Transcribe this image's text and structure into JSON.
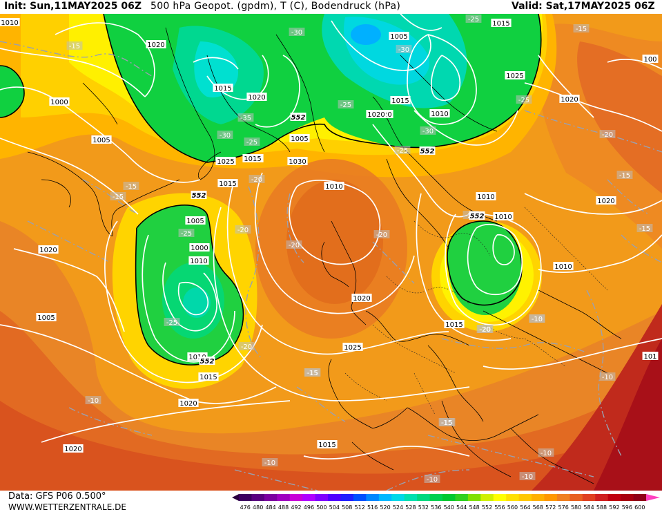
{
  "header": {
    "init": "Init: Sun,11MAY2025 06Z",
    "title": "500 hPa Geopot. (gpdm), T (C), Bodendruck (hPa)",
    "valid": "Valid: Sat,17MAY2025 06Z"
  },
  "footer": {
    "data_source": "Data: GFS P06 0.500°",
    "website": "WWW.WETTERZENTRALE.DE"
  },
  "scale": {
    "labels": [
      "476",
      "480",
      "484",
      "488",
      "492",
      "496",
      "500",
      "504",
      "508",
      "512",
      "516",
      "520",
      "524",
      "528",
      "532",
      "536",
      "540",
      "544",
      "548",
      "552",
      "556",
      "560",
      "564",
      "568",
      "572",
      "576",
      "580",
      "584",
      "588",
      "592",
      "596",
      "600"
    ],
    "colors": [
      "#3c0060",
      "#5a0080",
      "#7c00a0",
      "#a000c0",
      "#c800d8",
      "#b000ff",
      "#8000ff",
      "#5000ff",
      "#2020ff",
      "#0050ff",
      "#0088ff",
      "#00b8ff",
      "#00d8e8",
      "#00e0b0",
      "#00d880",
      "#00d050",
      "#00c830",
      "#30d020",
      "#80e000",
      "#d0f000",
      "#ffff00",
      "#ffe000",
      "#ffc800",
      "#ffb000",
      "#ff9800",
      "#f08020",
      "#e86020",
      "#e04020",
      "#d02020",
      "#c00010",
      "#a80010",
      "#900018"
    ]
  },
  "isobars": [
    {
      "text": "1010",
      "id": "p1"
    },
    {
      "text": "1005",
      "id": "p2"
    },
    {
      "text": "1015",
      "id": "p3"
    },
    {
      "text": "1020",
      "id": "p4"
    },
    {
      "text": "1000",
      "id": "p5"
    },
    {
      "text": "1005",
      "id": "p6"
    },
    {
      "text": "1020",
      "id": "p7"
    },
    {
      "text": "1015",
      "id": "p8"
    },
    {
      "text": "1020",
      "id": "p9"
    },
    {
      "text": "1015",
      "id": "p10"
    },
    {
      "text": "1025",
      "id": "p11"
    },
    {
      "text": "1020",
      "id": "p12"
    },
    {
      "text": "1015",
      "id": "p13"
    },
    {
      "text": "1025",
      "id": "p14"
    },
    {
      "text": "1030",
      "id": "p15"
    },
    {
      "text": "1010",
      "id": "p16"
    },
    {
      "text": "1005",
      "id": "p17"
    },
    {
      "text": "1000",
      "id": "p18"
    },
    {
      "text": "1010",
      "id": "p19"
    },
    {
      "text": "1020",
      "id": "p20"
    },
    {
      "text": "1005",
      "id": "p21"
    },
    {
      "text": "1010",
      "id": "p22"
    },
    {
      "text": "1015",
      "id": "p23"
    },
    {
      "text": "1020",
      "id": "p24"
    },
    {
      "text": "1020",
      "id": "p25"
    },
    {
      "text": "1025",
      "id": "p26"
    },
    {
      "text": "1020",
      "id": "p27"
    },
    {
      "text": "1015",
      "id": "p28"
    },
    {
      "text": "1015",
      "id": "p29"
    },
    {
      "text": "1010",
      "id": "p30"
    },
    {
      "text": "1010",
      "id": "p31"
    },
    {
      "text": "1020",
      "id": "p32"
    },
    {
      "text": "1015",
      "id": "p33"
    },
    {
      "text": "1010",
      "id": "p34"
    },
    {
      "text": "1020",
      "id": "p35"
    },
    {
      "text": "100",
      "id": "p36"
    },
    {
      "text": "101",
      "id": "p37"
    },
    {
      "text": "1005",
      "id": "p38"
    },
    {
      "text": "1010",
      "id": "p39"
    },
    {
      "text": "1015",
      "id": "p40"
    }
  ],
  "temps": [
    {
      "text": "-15"
    },
    {
      "text": "-30"
    },
    {
      "text": "-25"
    },
    {
      "text": "-30"
    },
    {
      "text": "-15"
    },
    {
      "text": "-35"
    },
    {
      "text": "-30"
    },
    {
      "text": "-25"
    },
    {
      "text": "-25"
    },
    {
      "text": "-25"
    },
    {
      "text": "-30"
    },
    {
      "text": "-25"
    },
    {
      "text": "-15"
    },
    {
      "text": "-15"
    },
    {
      "text": "-20"
    },
    {
      "text": "-20"
    },
    {
      "text": "-25"
    },
    {
      "text": "-20"
    },
    {
      "text": "-20"
    },
    {
      "text": "-25"
    },
    {
      "text": "-20"
    },
    {
      "text": "-25"
    },
    {
      "text": "-20"
    },
    {
      "text": "-15"
    },
    {
      "text": "-20"
    },
    {
      "text": "-15"
    },
    {
      "text": "-15"
    },
    {
      "text": "-10"
    },
    {
      "text": "-15"
    },
    {
      "text": "-10"
    },
    {
      "text": "-10"
    },
    {
      "text": "-10"
    },
    {
      "text": "-10"
    },
    {
      "text": "-10"
    },
    {
      "text": "-15"
    },
    {
      "text": "-10"
    },
    {
      "text": "-20"
    },
    {
      "text": "-15"
    },
    {
      "text": "-15"
    }
  ],
  "geopot_labels": [
    {
      "text": "552"
    },
    {
      "text": "552"
    },
    {
      "text": "552"
    },
    {
      "text": "552"
    },
    {
      "text": "552"
    }
  ]
}
